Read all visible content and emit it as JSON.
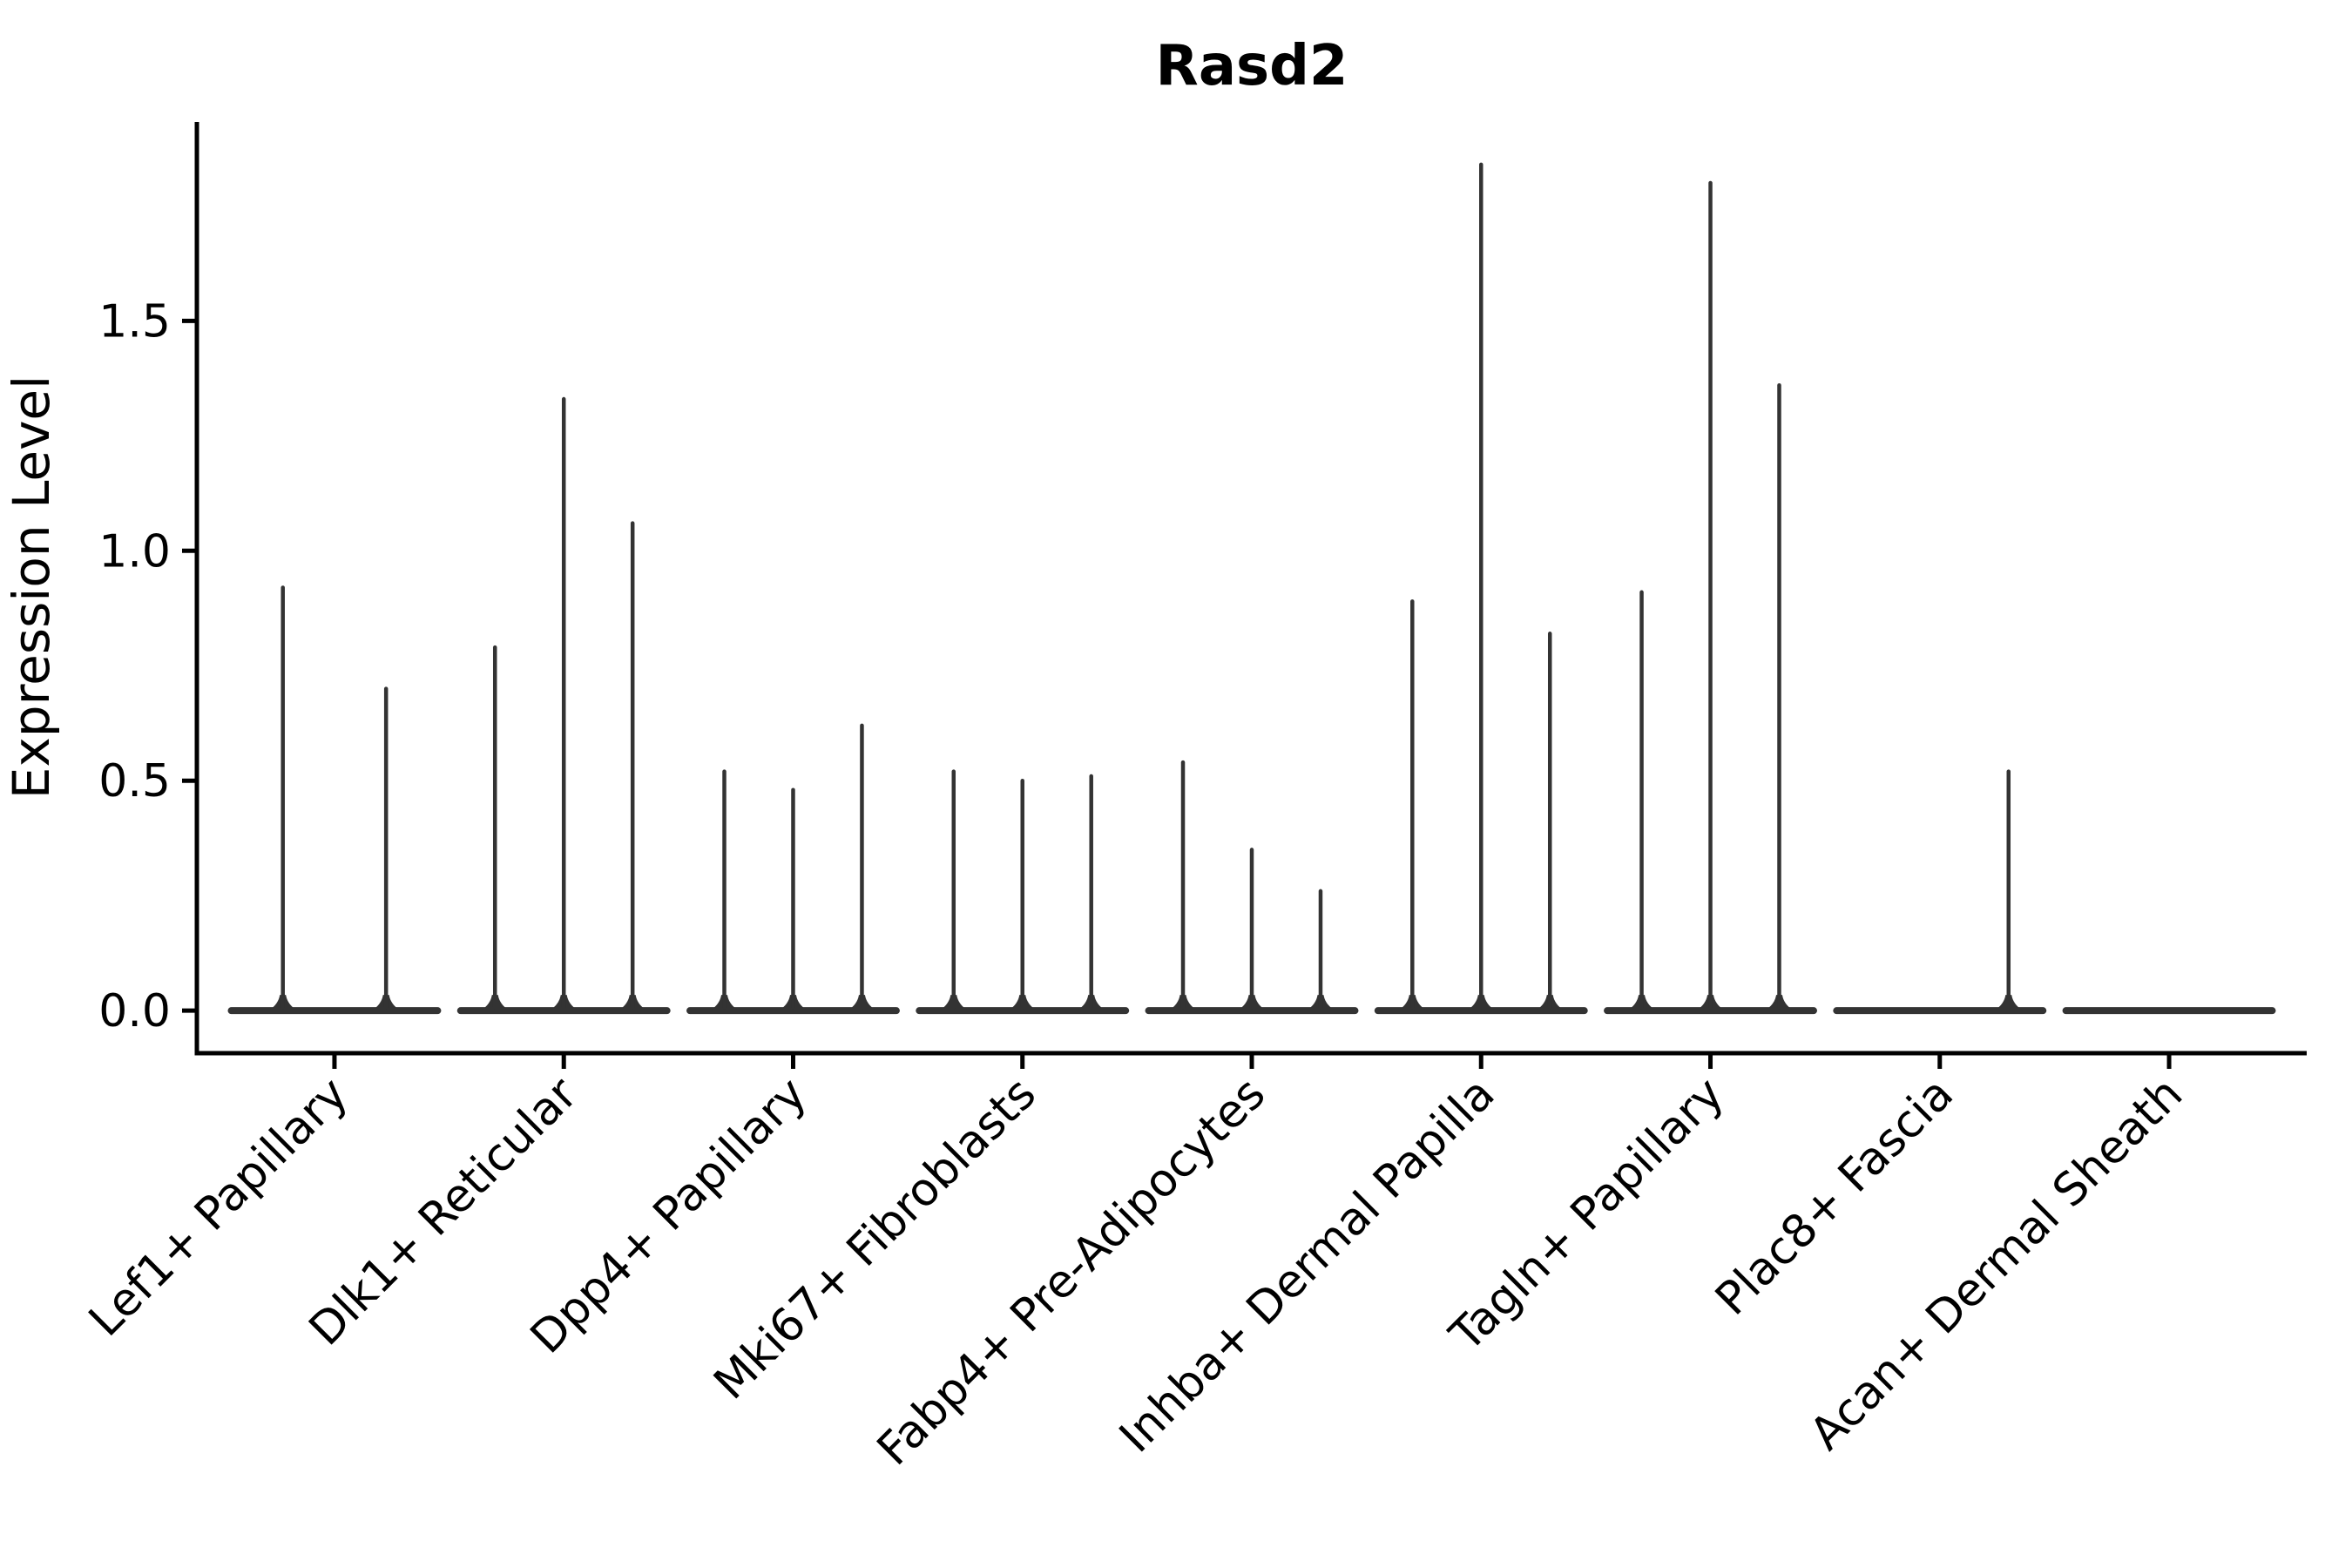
{
  "figure": {
    "background_color": "#ffffff",
    "axis_color": "#000000",
    "violin_color": "#333333"
  },
  "chart_data": {
    "type": "violin",
    "title": "Rasd2",
    "xlabel": "",
    "ylabel": "Expression Level",
    "legend": "none",
    "grid": false,
    "yticks": [
      0.0,
      0.5,
      1.0,
      1.5
    ],
    "ytick_labels": [
      "0.0",
      "0.5",
      "1.0",
      "1.5"
    ],
    "ylim": [
      -0.0925,
      1.9325
    ],
    "xlim": [
      -0.6,
      8.6
    ],
    "x_tick_rotation_deg": 45,
    "categories": [
      "Lef1+ Papillary",
      "Dlk1+ Reticular",
      "Dpp4+ Papillary",
      "Mki67+ Fibroblasts",
      "Fabp4+ Pre-Adipocytes",
      "Inhba+ Dermal Papilla",
      "Tagln+ Papillary",
      "Plac8+ Fascia",
      "Acan+ Dermal Sheath"
    ],
    "group_total_width": 0.9,
    "groups": [
      {
        "category": "Lef1+ Papillary",
        "violins": [
          {
            "offset": -0.225,
            "max_expression": 0.92
          },
          {
            "offset": 0.225,
            "max_expression": 0.7
          }
        ]
      },
      {
        "category": "Dlk1+ Reticular",
        "violins": [
          {
            "offset": -0.3,
            "max_expression": 0.79
          },
          {
            "offset": 0.0,
            "max_expression": 1.33
          },
          {
            "offset": 0.3,
            "max_expression": 1.06
          }
        ]
      },
      {
        "category": "Dpp4+ Papillary",
        "violins": [
          {
            "offset": -0.3,
            "max_expression": 0.52
          },
          {
            "offset": 0.0,
            "max_expression": 0.48
          },
          {
            "offset": 0.3,
            "max_expression": 0.62
          }
        ]
      },
      {
        "category": "Mki67+ Fibroblasts",
        "violins": [
          {
            "offset": -0.3,
            "max_expression": 0.52
          },
          {
            "offset": 0.0,
            "max_expression": 0.5
          },
          {
            "offset": 0.3,
            "max_expression": 0.51
          }
        ]
      },
      {
        "category": "Fabp4+ Pre-Adipocytes",
        "violins": [
          {
            "offset": -0.3,
            "max_expression": 0.54
          },
          {
            "offset": 0.0,
            "max_expression": 0.35
          },
          {
            "offset": 0.3,
            "max_expression": 0.26
          }
        ]
      },
      {
        "category": "Inhba+ Dermal Papilla",
        "violins": [
          {
            "offset": -0.3,
            "max_expression": 0.89
          },
          {
            "offset": 0.0,
            "max_expression": 1.84
          },
          {
            "offset": 0.3,
            "max_expression": 0.82
          }
        ]
      },
      {
        "category": "Tagln+ Papillary",
        "violins": [
          {
            "offset": -0.3,
            "max_expression": 0.91
          },
          {
            "offset": 0.0,
            "max_expression": 1.8
          },
          {
            "offset": 0.3,
            "max_expression": 1.36
          }
        ]
      },
      {
        "category": "Plac8+ Fascia",
        "violins": [
          {
            "offset": -0.3,
            "max_expression": 0.0
          },
          {
            "offset": 0.0,
            "max_expression": 0.0
          },
          {
            "offset": 0.3,
            "max_expression": 0.52
          }
        ]
      },
      {
        "category": "Acan+ Dermal Sheath",
        "violins": [
          {
            "offset": -0.3,
            "max_expression": 0.0
          },
          {
            "offset": 0.0,
            "max_expression": 0.0
          },
          {
            "offset": 0.3,
            "max_expression": 0.0
          }
        ]
      }
    ]
  }
}
